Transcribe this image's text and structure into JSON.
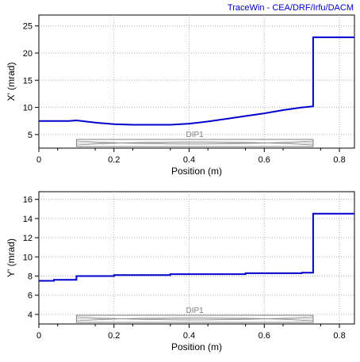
{
  "credit": "TraceWin - CEA/DRF/Irfu/DACM",
  "colors": {
    "curve": "#0000cc",
    "grid": "#b0b0b0",
    "element": "#808080",
    "axis": "#000000"
  },
  "chart_data": [
    {
      "type": "line",
      "xlabel": "Position (m)",
      "ylabel": "X' (mrad)",
      "xlim": [
        0,
        0.84
      ],
      "ylim": [
        2.5,
        27
      ],
      "xticks": [
        0,
        0.2,
        0.4,
        0.6,
        0.8
      ],
      "xtick_labels": [
        "0",
        "0.2",
        "0.4",
        "0.6",
        "0.8"
      ],
      "yticks": [
        5,
        10,
        15,
        20,
        25
      ],
      "ytick_labels": [
        "5",
        "10",
        "15",
        "20",
        "25"
      ],
      "grid": true,
      "element": {
        "label": "DIP1",
        "start": 0.1,
        "end": 0.73
      },
      "series": [
        {
          "x": [
            0,
            0.08,
            0.1,
            0.15,
            0.2,
            0.25,
            0.3,
            0.35,
            0.4,
            0.45,
            0.5,
            0.55,
            0.6,
            0.65,
            0.7,
            0.73,
            0.73,
            0.84
          ],
          "y": [
            7.5,
            7.5,
            7.6,
            7.2,
            6.9,
            6.8,
            6.8,
            6.8,
            7.0,
            7.4,
            7.9,
            8.4,
            8.9,
            9.5,
            10.0,
            10.2,
            22.9,
            22.9
          ]
        }
      ]
    },
    {
      "type": "line",
      "xlabel": "Position (m)",
      "ylabel": "Y' (mrad)",
      "xlim": [
        0,
        0.84
      ],
      "ylim": [
        3,
        16.8
      ],
      "xticks": [
        0,
        0.2,
        0.4,
        0.6,
        0.8
      ],
      "xtick_labels": [
        "0",
        "0.2",
        "0.4",
        "0.6",
        "0.8"
      ],
      "yticks": [
        4,
        6,
        8,
        10,
        12,
        14,
        16
      ],
      "ytick_labels": [
        "4",
        "6",
        "8",
        "10",
        "12",
        "14",
        "16"
      ],
      "grid": true,
      "element": {
        "label": "DIP1",
        "start": 0.1,
        "end": 0.73
      },
      "series": [
        {
          "x": [
            0,
            0.04,
            0.04,
            0.1,
            0.1,
            0.2,
            0.2,
            0.35,
            0.35,
            0.55,
            0.55,
            0.7,
            0.7,
            0.73,
            0.73,
            0.84
          ],
          "y": [
            7.5,
            7.5,
            7.6,
            7.6,
            8.0,
            8.0,
            8.1,
            8.1,
            8.2,
            8.2,
            8.3,
            8.3,
            8.35,
            8.35,
            14.5,
            14.5
          ]
        }
      ]
    }
  ]
}
